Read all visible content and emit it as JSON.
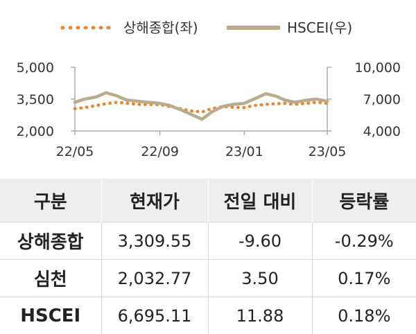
{
  "chart_data": {
    "type": "line",
    "legend": {
      "placement": "top"
    },
    "x_ticks": [
      "22/05",
      "22/09",
      "23/01",
      "23/05"
    ],
    "y_left": {
      "ticks": [
        "2,000",
        "3,500",
        "5,000"
      ],
      "range": [
        2000,
        5000
      ]
    },
    "y_right": {
      "ticks": [
        "4,000",
        "7,000",
        "10,000"
      ],
      "range": [
        4000,
        10000
      ]
    },
    "series": [
      {
        "name": "상해종합(좌)",
        "axis": "left",
        "style": "dotted",
        "color": "#e8852e",
        "dates": [
          "2022-05-01",
          "2022-05-15",
          "2022-06-01",
          "2022-06-15",
          "2022-07-01",
          "2022-07-15",
          "2022-08-01",
          "2022-08-15",
          "2022-09-01",
          "2022-09-15",
          "2022-10-01",
          "2022-10-15",
          "2022-11-01",
          "2022-11-15",
          "2022-12-01",
          "2022-12-15",
          "2023-01-01",
          "2023-01-15",
          "2023-02-01",
          "2023-02-15",
          "2023-03-01",
          "2023-03-15",
          "2023-04-01",
          "2023-04-15",
          "2023-05-01"
        ],
        "values": [
          3050,
          3100,
          3200,
          3280,
          3350,
          3300,
          3250,
          3250,
          3230,
          3150,
          3050,
          2950,
          2900,
          3050,
          3150,
          3120,
          3100,
          3200,
          3250,
          3280,
          3300,
          3250,
          3300,
          3350,
          3300
        ]
      },
      {
        "name": "HSCEI(우)",
        "axis": "right",
        "style": "solid",
        "color": "#b9ab8c",
        "dates": [
          "2022-05-01",
          "2022-05-15",
          "2022-06-01",
          "2022-06-15",
          "2022-07-01",
          "2022-07-15",
          "2022-08-01",
          "2022-08-15",
          "2022-09-01",
          "2022-09-15",
          "2022-10-01",
          "2022-10-15",
          "2022-11-01",
          "2022-11-15",
          "2022-12-01",
          "2022-12-15",
          "2023-01-01",
          "2023-01-15",
          "2023-02-01",
          "2023-02-15",
          "2023-03-01",
          "2023-03-15",
          "2023-04-01",
          "2023-04-15",
          "2023-05-01"
        ],
        "values": [
          6700,
          7000,
          7200,
          7600,
          7300,
          6900,
          6800,
          6700,
          6600,
          6400,
          6000,
          5600,
          5100,
          5800,
          6300,
          6500,
          6600,
          7000,
          7500,
          7300,
          6900,
          6700,
          6900,
          7000,
          6800
        ]
      }
    ]
  },
  "table": {
    "headers": [
      "구분",
      "현재가",
      "전일 대비",
      "등락률"
    ],
    "rows": [
      {
        "name": "상해종합",
        "price": "3,309.55",
        "change": "-9.60",
        "rate": "-0.29%"
      },
      {
        "name": "심천",
        "price": "2,032.77",
        "change": "3.50",
        "rate": "0.17%"
      },
      {
        "name": "HSCEI",
        "price": "6,695.11",
        "change": "11.88",
        "rate": "0.18%"
      }
    ]
  }
}
